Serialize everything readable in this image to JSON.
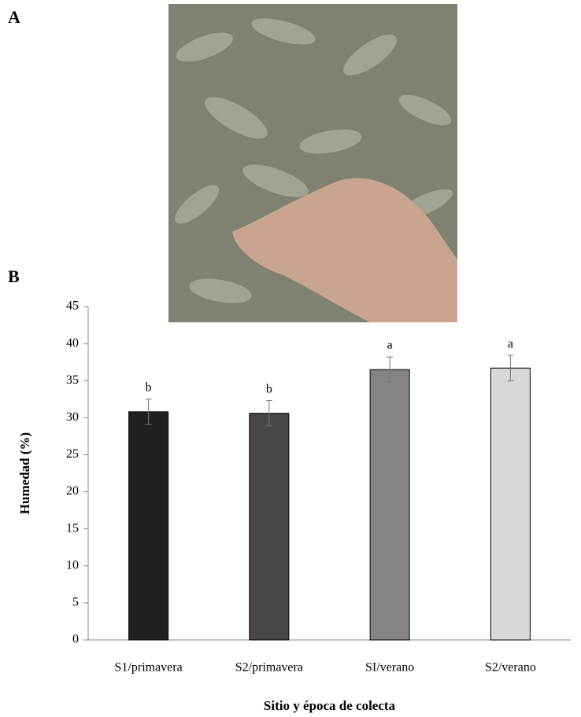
{
  "panel_labels": [
    "A",
    "B"
  ],
  "chart_data": {
    "type": "bar",
    "ylabel": "Humedad (%)",
    "xlabel": "Sitio y época de colecta",
    "categories": [
      "S1/primavera",
      "S2/primavera",
      "SI/verano",
      "S2/verano"
    ],
    "values": [
      30.8,
      30.6,
      36.5,
      36.7
    ],
    "errors": [
      1.7,
      1.7,
      1.7,
      1.7
    ],
    "annotations": [
      "b",
      "b",
      "a",
      "a"
    ],
    "colors": [
      "#221f20",
      "#4a4646",
      "#878283",
      "#d9d7d8"
    ],
    "ylim": [
      0,
      45
    ],
    "yticks": [
      0,
      5,
      10,
      15,
      20,
      25,
      30,
      35,
      40,
      45
    ]
  }
}
